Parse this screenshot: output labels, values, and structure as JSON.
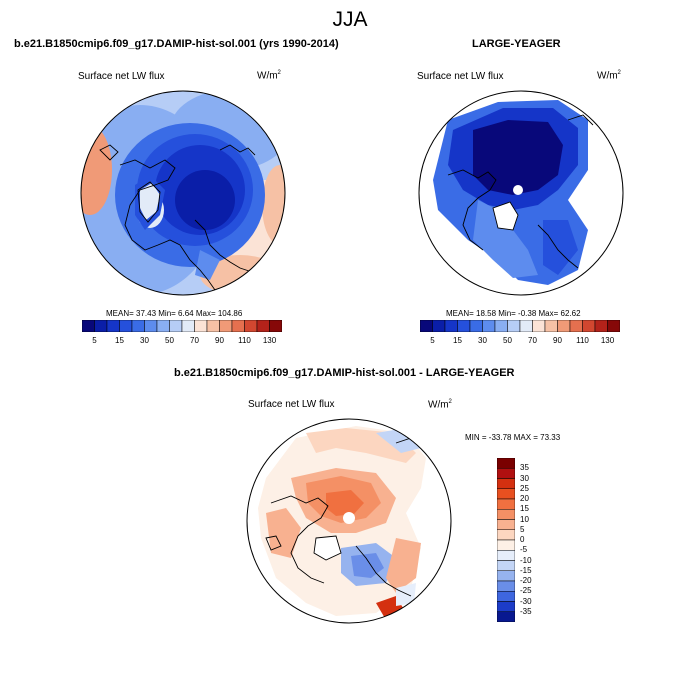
{
  "main_title": "JJA",
  "panels": [
    {
      "title": "b.e21.B1850cmip6.f09_g17.DAMIP-hist-sol.001 (yrs 1990-2014)",
      "variable": "Surface net LW flux",
      "units_base": "W/m",
      "units_exp": "2",
      "stats": "MEAN=  37.43  Min=   6.64  Max= 104.86",
      "colorbar_ticks": [
        "5",
        "15",
        "30",
        "50",
        "70",
        "90",
        "110",
        "130"
      ]
    },
    {
      "title": "LARGE-YEAGER",
      "variable": "Surface net LW flux",
      "units_base": "W/m",
      "units_exp": "2",
      "stats": "MEAN=  18.58  Min=  -0.38  Max=  62.62",
      "colorbar_ticks": [
        "5",
        "15",
        "30",
        "50",
        "70",
        "90",
        "110",
        "130"
      ]
    },
    {
      "title": "b.e21.B1850cmip6.f09_g17.DAMIP-hist-sol.001 - LARGE-YEAGER",
      "variable": "Surface net LW flux",
      "units_base": "W/m",
      "units_exp": "2",
      "stats": "MIN = -33.78 MAX =  73.33",
      "colorbar_ticks": [
        "35",
        "30",
        "25",
        "20",
        "15",
        "10",
        "5",
        "0",
        "-5",
        "-10",
        "-15",
        "-20",
        "-25",
        "-30",
        "-35"
      ]
    }
  ],
  "colors": {
    "abs_scale": [
      "#08087a",
      "#0a1ea8",
      "#1535c8",
      "#2550dc",
      "#3a6ce6",
      "#5d8cee",
      "#89aef2",
      "#b6cdf6",
      "#e2ebf8",
      "#fbe3d6",
      "#f6c1a5",
      "#f09a77",
      "#e5704f",
      "#d24730",
      "#b3221a",
      "#860808"
    ],
    "diff_scale": [
      "#7a0000",
      "#b01010",
      "#d43010",
      "#e85020",
      "#f07040",
      "#f49065",
      "#f8b190",
      "#fcd6c0",
      "#fdf0e6",
      "#e6eefb",
      "#c3d5f6",
      "#96b3ef",
      "#6a8ee8",
      "#3e66df",
      "#1c3cc8",
      "#081890"
    ]
  }
}
